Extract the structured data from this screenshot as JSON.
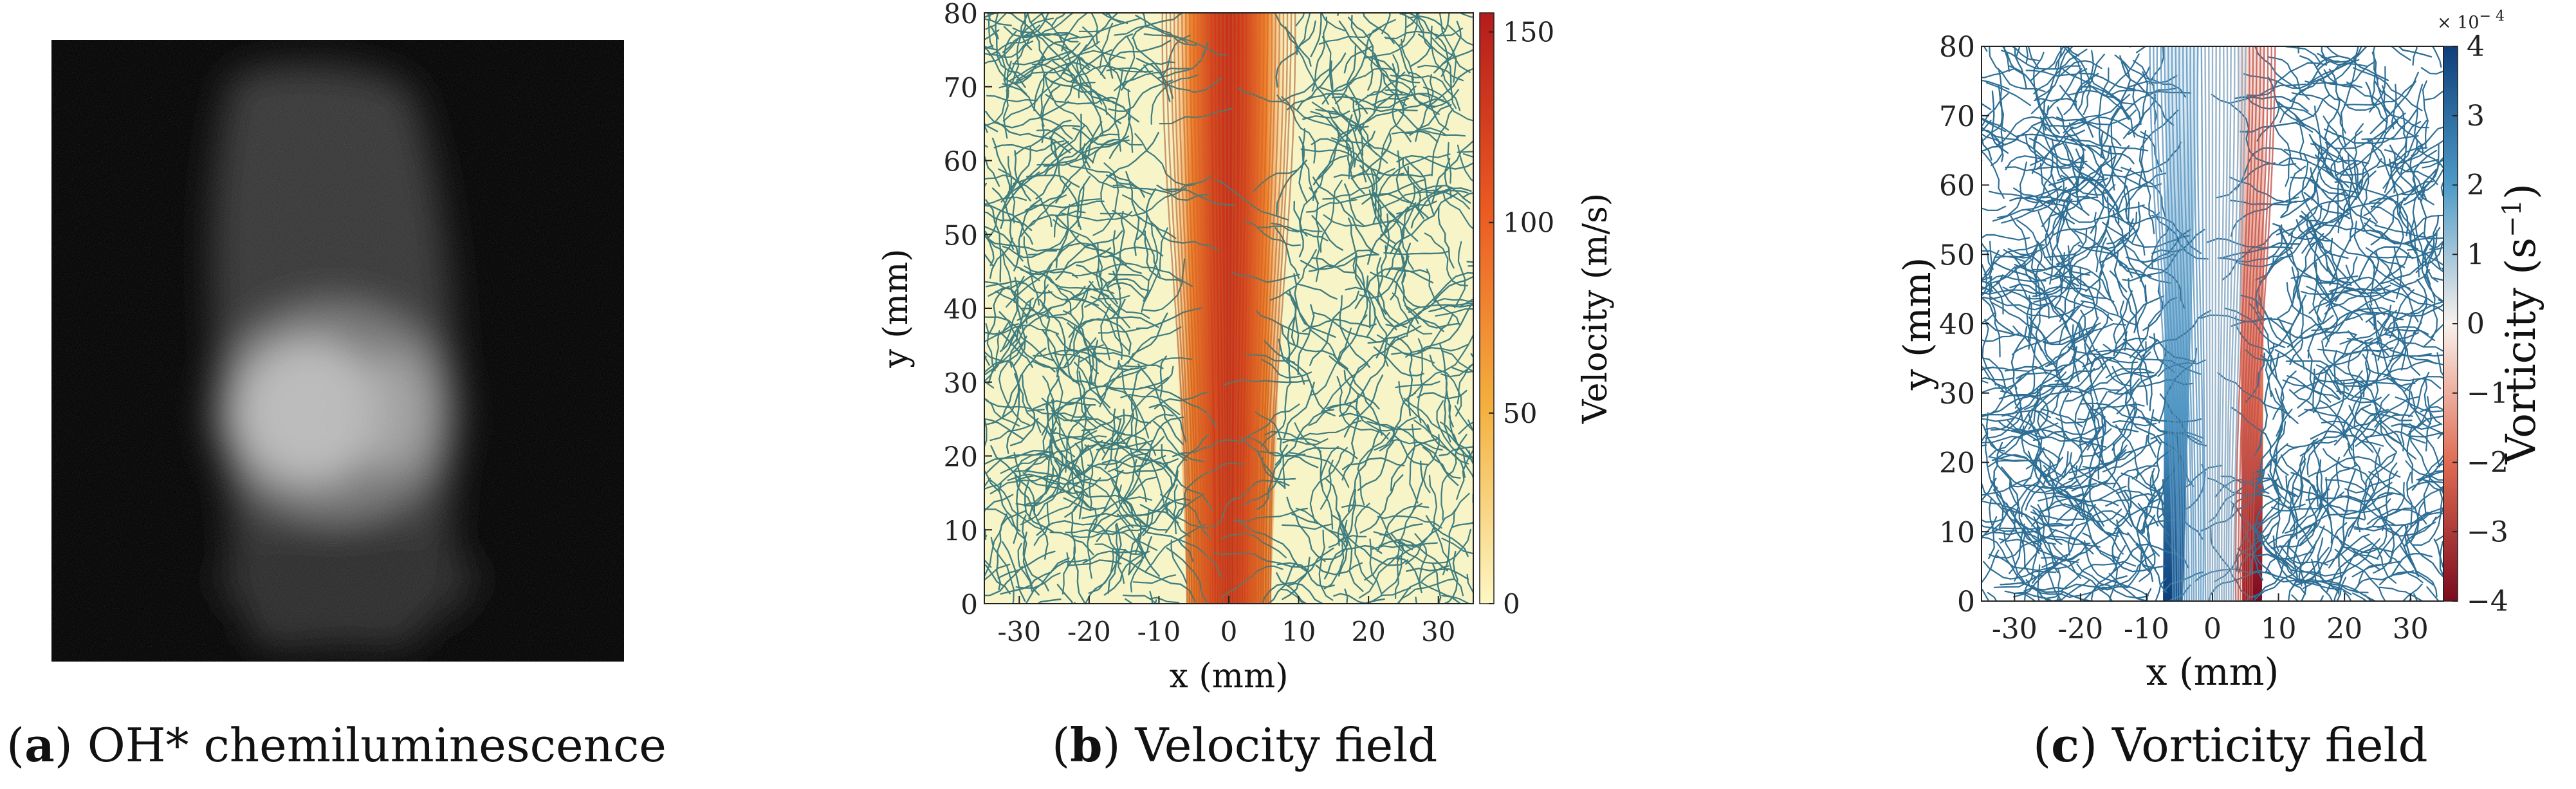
{
  "figure": {
    "panels": [
      {
        "id": "a",
        "letter": "a",
        "caption": "OH* chemiluminescence"
      },
      {
        "id": "b",
        "letter": "b",
        "caption": "Velocity field"
      },
      {
        "id": "c",
        "letter": "c",
        "caption": "Vorticity field"
      }
    ]
  },
  "chart_data": [
    {
      "type": "image",
      "panel": "a",
      "description_hidden": true
    },
    {
      "type": "heatmap",
      "panel": "b",
      "title": "Velocity field",
      "xlabel": "x (mm)",
      "ylabel": "y (mm)",
      "xlim": [
        -35,
        35
      ],
      "ylim": [
        0,
        80
      ],
      "xticks": [
        -30,
        -20,
        -10,
        0,
        10,
        20,
        30
      ],
      "yticks": [
        0,
        10,
        20,
        30,
        40,
        50,
        60,
        70,
        80
      ],
      "colorbar": {
        "label": "Velocity (m/s)",
        "range": [
          0,
          155
        ],
        "ticks": [
          0,
          50,
          100,
          150
        ],
        "colors": [
          "#fdf7c4",
          "#f4b03e",
          "#ec5a22",
          "#b51b1b"
        ]
      },
      "streamline_color": "#3f7d7f",
      "jet_half_width_mm": [
        6,
        9
      ]
    },
    {
      "type": "heatmap",
      "panel": "c",
      "title": "Vorticity field",
      "xlabel": "x (mm)",
      "ylabel": "y (mm)",
      "xlim": [
        -35,
        35
      ],
      "ylim": [
        0,
        80
      ],
      "xticks": [
        -30,
        -20,
        -10,
        0,
        10,
        20,
        30
      ],
      "yticks": [
        0,
        10,
        20,
        30,
        40,
        50,
        60,
        70,
        80
      ],
      "colorbar": {
        "label": "Vorticity (s",
        "label_sup": "−1",
        "label_end": ")",
        "multiplier": "× 10",
        "multiplier_exp": "− 4",
        "range": [
          -4,
          4
        ],
        "ticks": [
          -4,
          -3,
          -2,
          -1,
          0,
          1,
          2,
          3,
          4
        ],
        "tick_labels": [
          "−4",
          "−3",
          "−2",
          "−1",
          "0",
          "1",
          "2",
          "3",
          "4"
        ],
        "colors": [
          "#7b0a1e",
          "#e06b52",
          "#f8f1ec",
          "#4e9bc8",
          "#0d3f7a"
        ]
      },
      "streamline_color": "#2f6f95"
    }
  ]
}
